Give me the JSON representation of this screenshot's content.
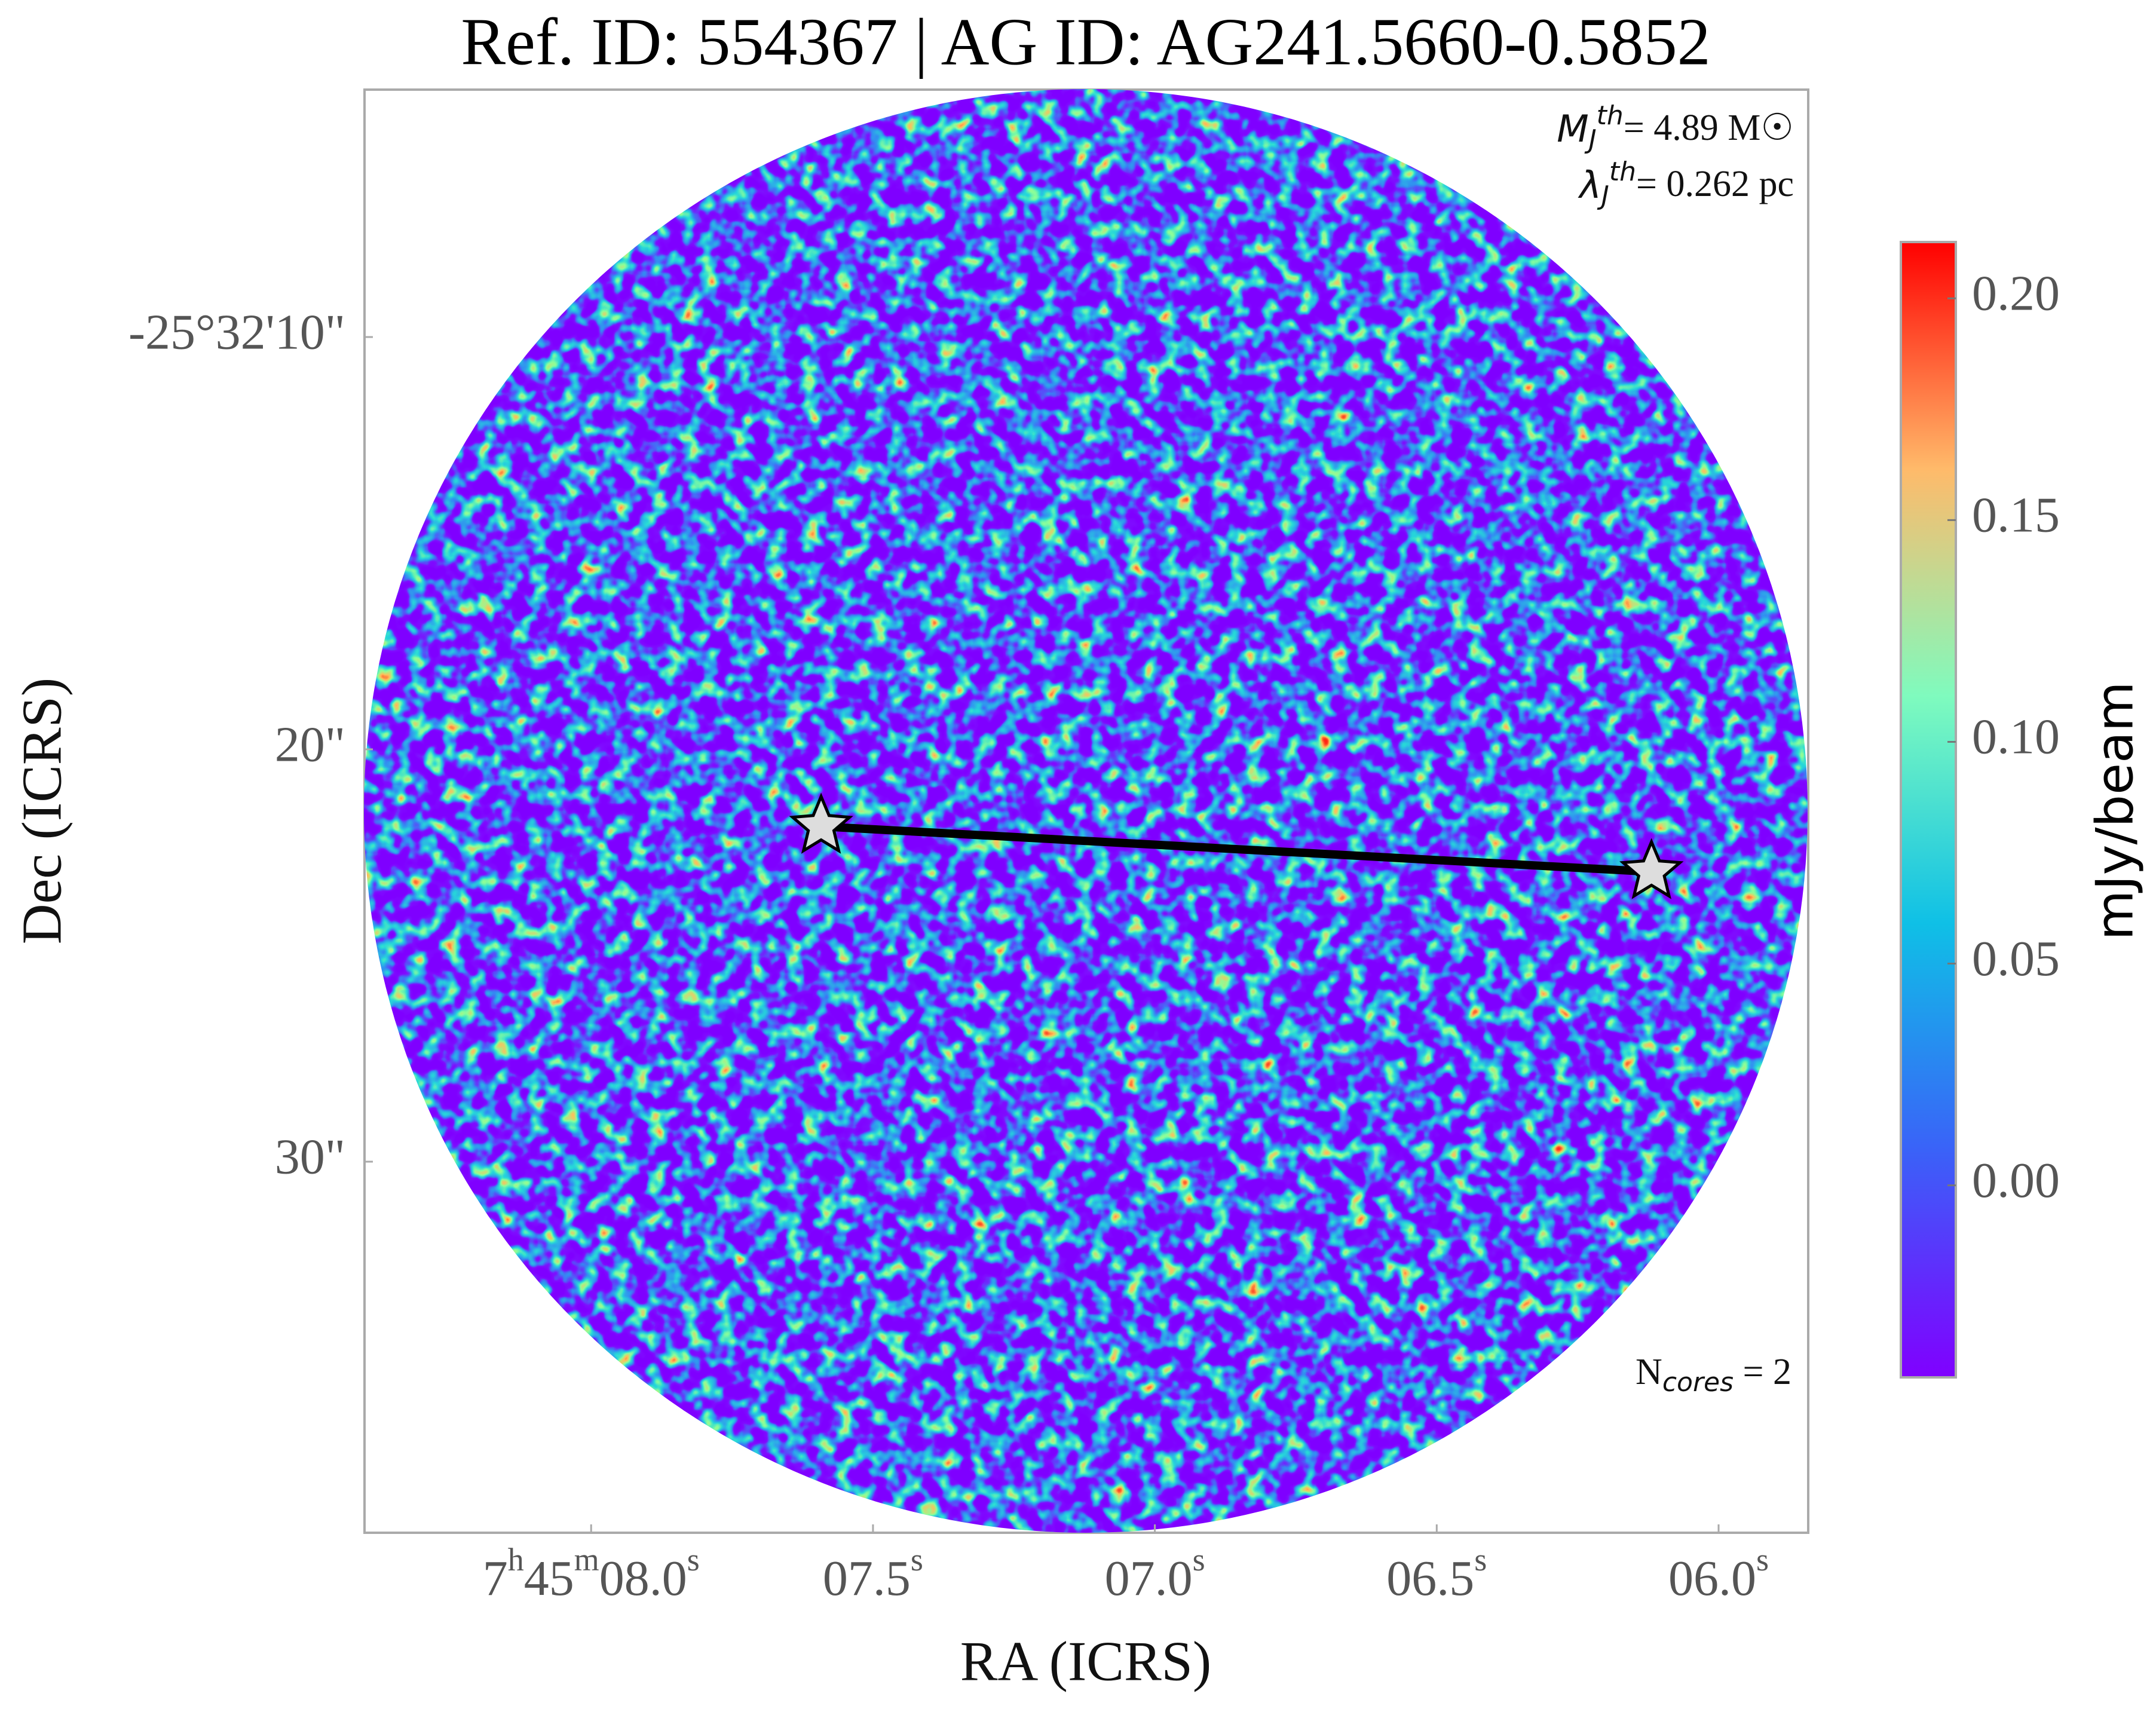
{
  "chart_data": {
    "type": "map",
    "title": "Ref. ID: 554367 | AG ID: AG241.5660-0.5852",
    "x_label": "RA (ICRS)",
    "y_label": "Dec (ICRS)",
    "xlim": [
      8.402,
      5.841
    ],
    "xticks": [
      {
        "value": 8.0,
        "label": "7h45m08.0s"
      },
      {
        "value": 7.5,
        "label": "07.5s"
      },
      {
        "value": 7.0,
        "label": "07.0s"
      },
      {
        "value": 6.5,
        "label": "06.5s"
      },
      {
        "value": 6.0,
        "label": "06.0s"
      }
    ],
    "ylim": [
      4,
      39
    ],
    "yticks": [
      {
        "value": 10,
        "label": "-25°32'10\""
      },
      {
        "value": 20,
        "label": "20\""
      },
      {
        "value": 30,
        "label": "30\""
      }
    ],
    "annotations": [
      {
        "symbol": "M",
        "sub": "J",
        "sup": "th",
        "text": "= 4.89 M☉"
      },
      {
        "symbol": "λ",
        "sub": "J",
        "sup": "th",
        "text": "= 0.262 pc"
      },
      {
        "symbol": "N",
        "sub": "cores",
        "text": " = 2"
      }
    ],
    "cores": {
      "ra": [
        7.592,
        6.119
      ],
      "dec": [
        21.87,
        22.97
      ],
      "color": "#dddddd"
    },
    "colorbar": {
      "label": "mJy/beam",
      "lim": [
        -0.0433,
        0.2127
      ],
      "ticks": [
        {
          "value": 0.2,
          "label": "0.20"
        },
        {
          "value": 0.15,
          "label": "0.15"
        },
        {
          "value": 0.1,
          "label": "0.10"
        },
        {
          "value": 0.05,
          "label": "0.05"
        },
        {
          "value": 0,
          "label": "0.00"
        }
      ]
    }
  }
}
